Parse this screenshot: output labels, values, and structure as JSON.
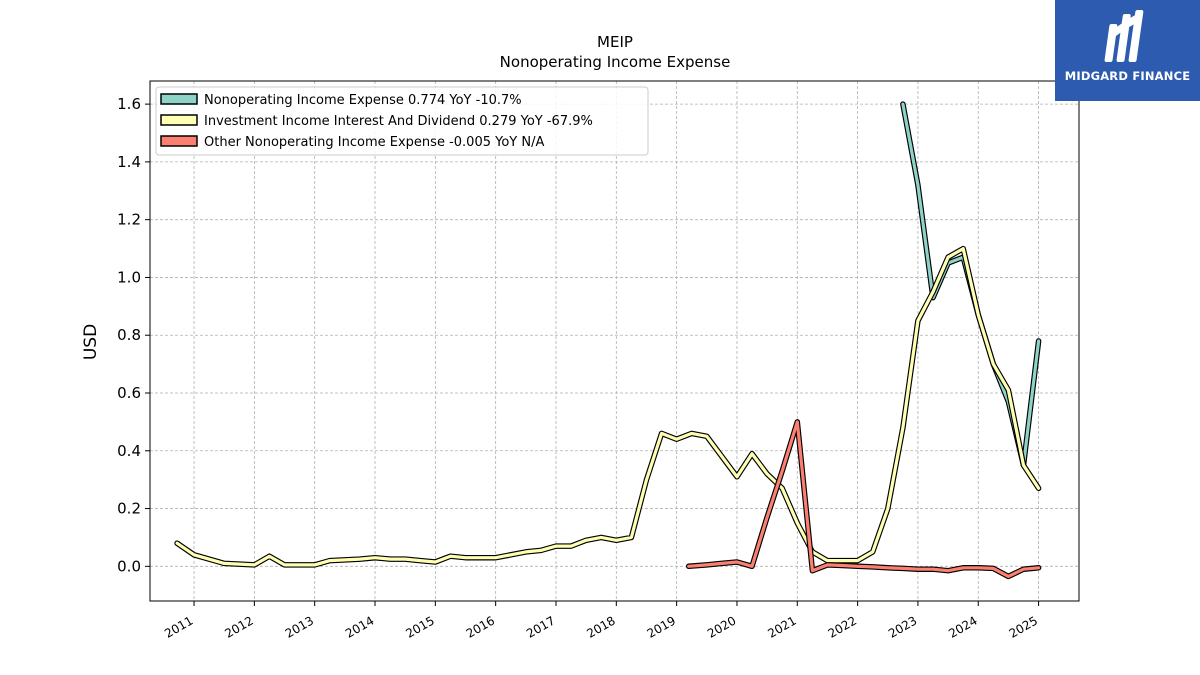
{
  "brand": {
    "name": "MIDGARD FINANCE",
    "bg_color": "#2d5bb0"
  },
  "chart_data": {
    "type": "line",
    "title": "MEIP",
    "subtitle": "Nonoperating Income Expense",
    "ylabel": "USD",
    "xlabel": "",
    "ylim": [
      -0.12,
      1.68
    ],
    "xlim": [
      2010.27,
      2025.67
    ],
    "yticks": [
      0.0,
      0.2,
      0.4,
      0.6,
      0.8,
      1.0,
      1.2,
      1.4,
      1.6
    ],
    "ytick_labels": [
      "0.0",
      "0.2",
      "0.4",
      "0.6",
      "0.8",
      "1.0",
      "1.2",
      "1.4",
      "1.6"
    ],
    "xtick_labels": [
      "2011",
      "2012",
      "2013",
      "2014",
      "2015",
      "2016",
      "2017",
      "2018",
      "2019",
      "2020",
      "2021",
      "2022",
      "2023",
      "2024",
      "2025"
    ],
    "grid": true,
    "legend_position": "top-left",
    "series": [
      {
        "name": "Nonoperating Income Expense",
        "legend": "Nonoperating Income Expense  0.774 YoY -10.7%",
        "color": "#8dd3c7",
        "x": [
          2022.75,
          2023.0,
          2023.25,
          2023.5,
          2023.75,
          2024.0,
          2024.25,
          2024.5,
          2024.75,
          2025.0
        ],
        "y": [
          1.6,
          1.32,
          0.93,
          1.05,
          1.07,
          0.87,
          0.7,
          0.57,
          0.35,
          0.78
        ]
      },
      {
        "name": "Investment Income Interest And Dividend",
        "legend": "Investment Income Interest And Dividend  0.279 YoY -67.9%",
        "color": "#ffffb3",
        "x": [
          2010.72,
          2011.0,
          2011.5,
          2012.0,
          2012.25,
          2012.5,
          2013.0,
          2013.25,
          2013.75,
          2014.0,
          2014.25,
          2014.5,
          2014.75,
          2015.0,
          2015.25,
          2015.5,
          2016.0,
          2016.5,
          2016.75,
          2017.0,
          2017.25,
          2017.5,
          2017.75,
          2018.0,
          2018.25,
          2018.5,
          2018.75,
          2019.0,
          2019.25,
          2019.5,
          2019.75,
          2020.0,
          2020.25,
          2020.5,
          2020.75,
          2021.0,
          2021.25,
          2021.5,
          2021.75,
          2022.0,
          2022.25,
          2022.5,
          2022.75,
          2023.0,
          2023.25,
          2023.5,
          2023.75,
          2024.0,
          2024.25,
          2024.5,
          2024.75,
          2025.0
        ],
        "y": [
          0.08,
          0.04,
          0.01,
          0.005,
          0.035,
          0.005,
          0.005,
          0.02,
          0.025,
          0.03,
          0.025,
          0.025,
          0.02,
          0.015,
          0.035,
          0.03,
          0.03,
          0.05,
          0.055,
          0.07,
          0.07,
          0.09,
          0.1,
          0.09,
          0.1,
          0.3,
          0.46,
          0.44,
          0.46,
          0.45,
          0.38,
          0.31,
          0.39,
          0.32,
          0.27,
          0.15,
          0.05,
          0.02,
          0.02,
          0.02,
          0.05,
          0.2,
          0.48,
          0.85,
          0.95,
          1.07,
          1.1,
          0.87,
          0.7,
          0.61,
          0.35,
          0.27
        ]
      },
      {
        "name": "Other Nonoperating Income Expense",
        "legend": "Other Nonoperating Income Expense  -0.005 YoY N/A",
        "color": "#fb8072",
        "x": [
          2019.2,
          2019.5,
          2019.75,
          2020.0,
          2020.25,
          2020.5,
          2020.75,
          2021.0,
          2021.25,
          2021.5,
          2021.75,
          2022.0,
          2022.25,
          2022.5,
          2022.75,
          2023.0,
          2023.25,
          2023.5,
          2023.75,
          2024.0,
          2024.25,
          2024.5,
          2024.75,
          2025.0
        ],
        "y": [
          0.0,
          0.005,
          0.01,
          0.015,
          0.0,
          0.17,
          0.33,
          0.5,
          -0.015,
          0.005,
          0.003,
          0.0,
          -0.002,
          -0.005,
          -0.007,
          -0.01,
          -0.01,
          -0.015,
          -0.005,
          -0.005,
          -0.007,
          -0.035,
          -0.01,
          -0.005
        ]
      }
    ]
  }
}
